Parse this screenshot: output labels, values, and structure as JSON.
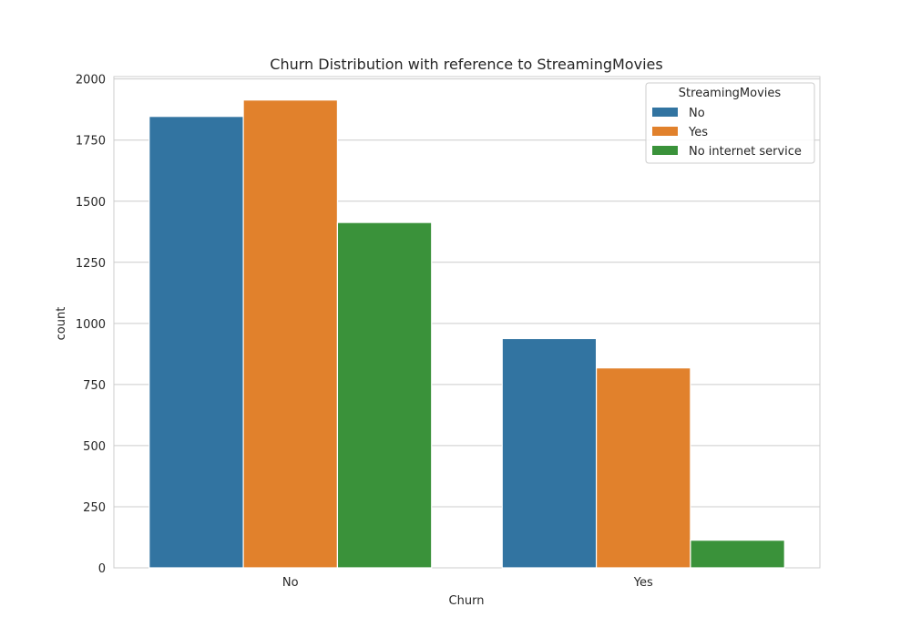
{
  "chart_data": {
    "type": "bar",
    "title": "Churn Distribution with reference to StreamingMovies",
    "xlabel": "Churn",
    "ylabel": "count",
    "categories": [
      "No",
      "Yes"
    ],
    "series": [
      {
        "name": "No",
        "values": [
          1847,
          938
        ],
        "color": "#3274a1"
      },
      {
        "name": "Yes",
        "values": [
          1914,
          818
        ],
        "color": "#e1812c"
      },
      {
        "name": "No internet service",
        "values": [
          1413,
          113
        ],
        "color": "#3a923a"
      }
    ],
    "ylim": [
      0,
      2010
    ],
    "yticks": [
      0,
      250,
      500,
      750,
      1000,
      1250,
      1500,
      1750,
      2000
    ],
    "grid": true,
    "legend": {
      "title": "StreamingMovies",
      "placement": "top-right"
    }
  }
}
